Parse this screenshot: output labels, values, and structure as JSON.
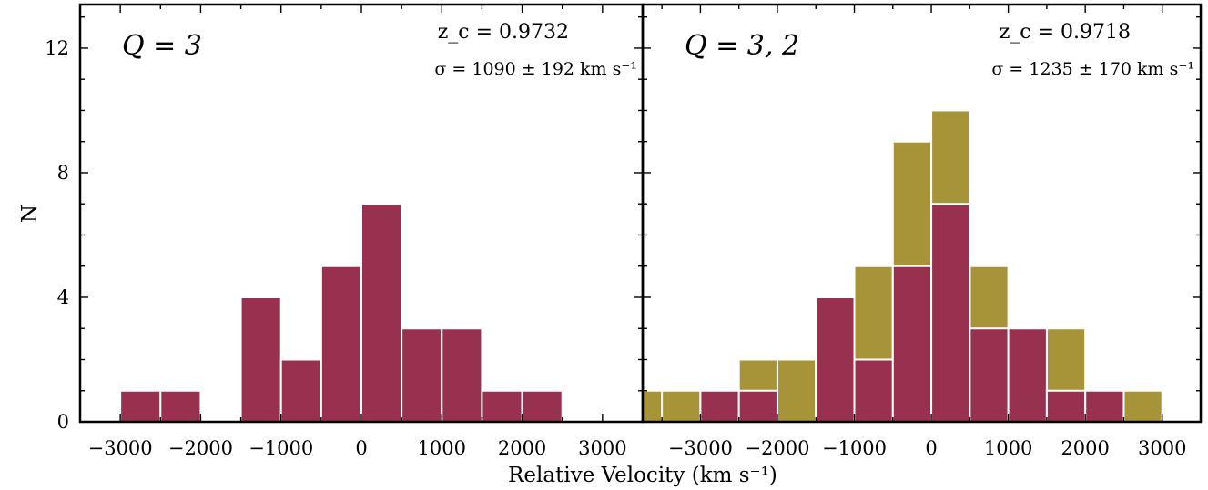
{
  "colors": {
    "q3": "#983050",
    "q2": "#a89438",
    "frame": "#000000"
  },
  "axes": {
    "xlabel": "Relative Velocity (km s⁻¹)",
    "ylabel": "N"
  },
  "chart_data": [
    {
      "type": "bar",
      "panel": "left",
      "label": "Q = 3",
      "annotation_z": "z_c = 0.9732",
      "annotation_sigma": "σ = 1090 ± 192 km s⁻¹",
      "xlim": [
        -3500,
        3500
      ],
      "ylim": [
        0,
        13.4
      ],
      "xticks": [
        -3000,
        -2000,
        -1000,
        0,
        1000,
        2000,
        3000
      ],
      "xtick_labels": [
        "−3000",
        "−2000",
        "−1000",
        "0",
        "1000",
        "2000",
        "3000"
      ],
      "yticks": [
        0,
        4,
        8,
        12
      ],
      "bin_width": 500,
      "series": [
        {
          "name": "Q = 3",
          "color": "#983050",
          "bins": [
            {
              "x0": -3000,
              "count": 1
            },
            {
              "x0": -2500,
              "count": 1
            },
            {
              "x0": -1500,
              "count": 4
            },
            {
              "x0": -1000,
              "count": 2
            },
            {
              "x0": -500,
              "count": 5
            },
            {
              "x0": 0,
              "count": 7
            },
            {
              "x0": 500,
              "count": 3
            },
            {
              "x0": 1000,
              "count": 3
            },
            {
              "x0": 1500,
              "count": 1
            },
            {
              "x0": 2000,
              "count": 1
            }
          ]
        }
      ]
    },
    {
      "type": "bar",
      "panel": "right",
      "stacked": true,
      "label": "Q = 3, 2",
      "annotation_z": "z_c = 0.9718",
      "annotation_sigma": "σ = 1235 ± 170 km s⁻¹",
      "xlim": [
        -3750,
        3500
      ],
      "ylim": [
        0,
        13.4
      ],
      "xticks": [
        -3000,
        -2000,
        -1000,
        0,
        1000,
        2000,
        3000
      ],
      "xtick_labels": [
        "−3000",
        "−2000",
        "−1000",
        "0",
        "1000",
        "2000",
        "3000"
      ],
      "yticks": [
        0,
        4,
        8,
        12
      ],
      "bin_width": 500,
      "series": [
        {
          "name": "Q = 3, 2",
          "color": "#a89438",
          "bins": [
            {
              "x0": -3750,
              "count": 1
            },
            {
              "x0": -3500,
              "count": 1
            },
            {
              "x0": -3000,
              "count": 1
            },
            {
              "x0": -2500,
              "count": 2
            },
            {
              "x0": -2000,
              "count": 2
            },
            {
              "x0": -1500,
              "count": 4
            },
            {
              "x0": -1000,
              "count": 5
            },
            {
              "x0": -500,
              "count": 9
            },
            {
              "x0": 0,
              "count": 10
            },
            {
              "x0": 500,
              "count": 5
            },
            {
              "x0": 1000,
              "count": 3
            },
            {
              "x0": 1500,
              "count": 3
            },
            {
              "x0": 2000,
              "count": 1
            },
            {
              "x0": 2500,
              "count": 1
            }
          ]
        },
        {
          "name": "Q = 3",
          "color": "#983050",
          "bins": [
            {
              "x0": -3000,
              "count": 1
            },
            {
              "x0": -2500,
              "count": 1
            },
            {
              "x0": -1500,
              "count": 4
            },
            {
              "x0": -1000,
              "count": 2
            },
            {
              "x0": -500,
              "count": 5
            },
            {
              "x0": 0,
              "count": 7
            },
            {
              "x0": 500,
              "count": 3
            },
            {
              "x0": 1000,
              "count": 3
            },
            {
              "x0": 1500,
              "count": 1
            },
            {
              "x0": 2000,
              "count": 1
            }
          ]
        }
      ]
    }
  ]
}
